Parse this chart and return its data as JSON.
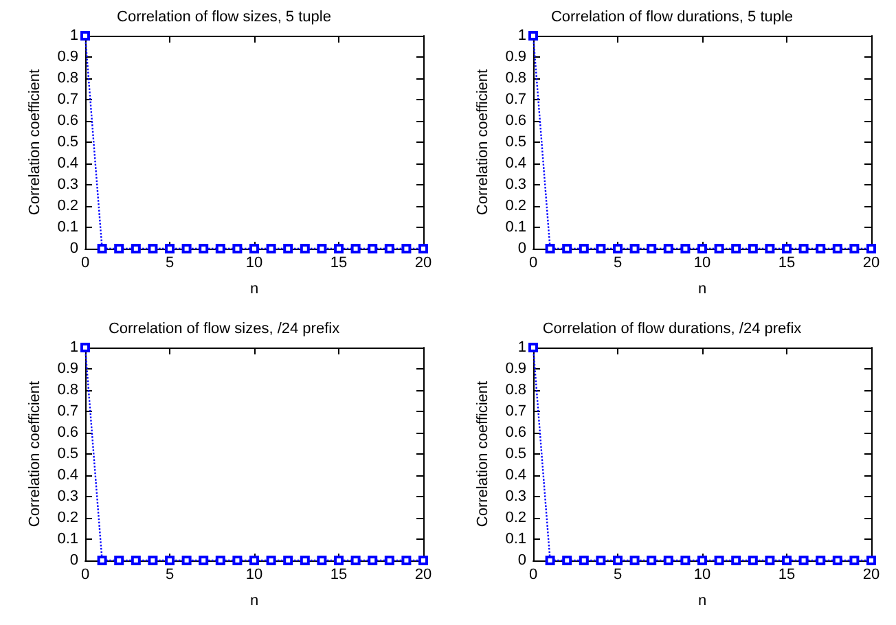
{
  "chart_data": [
    {
      "type": "line",
      "title": "Correlation of flow sizes, 5 tuple",
      "xlabel": "n",
      "ylabel": "Correlation coefficient",
      "x": [
        0,
        1,
        2,
        3,
        4,
        5,
        6,
        7,
        8,
        9,
        10,
        11,
        12,
        13,
        14,
        15,
        16,
        17,
        18,
        19,
        20
      ],
      "values": [
        1,
        0,
        0,
        0,
        0,
        0,
        0,
        0,
        0,
        0,
        0,
        0,
        0,
        0,
        0,
        0,
        0,
        0,
        0,
        0,
        0
      ],
      "color": "#0000ff",
      "marker": "square",
      "line_style": "dotted",
      "xlim": [
        0,
        20
      ],
      "ylim": [
        0,
        1
      ],
      "xticks": [
        0,
        5,
        10,
        15,
        20
      ],
      "yticks": [
        0,
        0.1,
        0.2,
        0.3,
        0.4,
        0.5,
        0.6,
        0.7,
        0.8,
        0.9,
        1
      ],
      "grid": false
    },
    {
      "type": "line",
      "title": "Correlation of flow durations, 5 tuple",
      "xlabel": "n",
      "ylabel": "Correlation coefficient",
      "x": [
        0,
        1,
        2,
        3,
        4,
        5,
        6,
        7,
        8,
        9,
        10,
        11,
        12,
        13,
        14,
        15,
        16,
        17,
        18,
        19,
        20
      ],
      "values": [
        1,
        0,
        0,
        0,
        0,
        0,
        0,
        0,
        0,
        0,
        0,
        0,
        0,
        0,
        0,
        0,
        0,
        0,
        0,
        0,
        0
      ],
      "color": "#0000ff",
      "marker": "square",
      "line_style": "dotted",
      "xlim": [
        0,
        20
      ],
      "ylim": [
        0,
        1
      ],
      "xticks": [
        0,
        5,
        10,
        15,
        20
      ],
      "yticks": [
        0,
        0.1,
        0.2,
        0.3,
        0.4,
        0.5,
        0.6,
        0.7,
        0.8,
        0.9,
        1
      ],
      "grid": false
    },
    {
      "type": "line",
      "title": "Correlation of flow sizes, /24 prefix",
      "xlabel": "n",
      "ylabel": "Correlation coefficient",
      "x": [
        0,
        1,
        2,
        3,
        4,
        5,
        6,
        7,
        8,
        9,
        10,
        11,
        12,
        13,
        14,
        15,
        16,
        17,
        18,
        19,
        20
      ],
      "values": [
        1,
        0,
        0,
        0,
        0,
        0,
        0,
        0,
        0,
        0,
        0,
        0,
        0,
        0,
        0,
        0,
        0,
        0,
        0,
        0,
        0
      ],
      "color": "#0000ff",
      "marker": "square",
      "line_style": "dotted",
      "xlim": [
        0,
        20
      ],
      "ylim": [
        0,
        1
      ],
      "xticks": [
        0,
        5,
        10,
        15,
        20
      ],
      "yticks": [
        0,
        0.1,
        0.2,
        0.3,
        0.4,
        0.5,
        0.6,
        0.7,
        0.8,
        0.9,
        1
      ],
      "grid": false
    },
    {
      "type": "line",
      "title": "Correlation of flow durations, /24 prefix",
      "xlabel": "n",
      "ylabel": "Correlation coefficient",
      "x": [
        0,
        1,
        2,
        3,
        4,
        5,
        6,
        7,
        8,
        9,
        10,
        11,
        12,
        13,
        14,
        15,
        16,
        17,
        18,
        19,
        20
      ],
      "values": [
        1,
        0,
        0,
        0,
        0,
        0,
        0,
        0,
        0,
        0,
        0,
        0,
        0,
        0,
        0,
        0,
        0,
        0,
        0,
        0,
        0
      ],
      "color": "#0000ff",
      "marker": "square",
      "line_style": "dotted",
      "xlim": [
        0,
        20
      ],
      "ylim": [
        0,
        1
      ],
      "xticks": [
        0,
        5,
        10,
        15,
        20
      ],
      "yticks": [
        0,
        0.1,
        0.2,
        0.3,
        0.4,
        0.5,
        0.6,
        0.7,
        0.8,
        0.9,
        1
      ],
      "grid": false
    }
  ]
}
